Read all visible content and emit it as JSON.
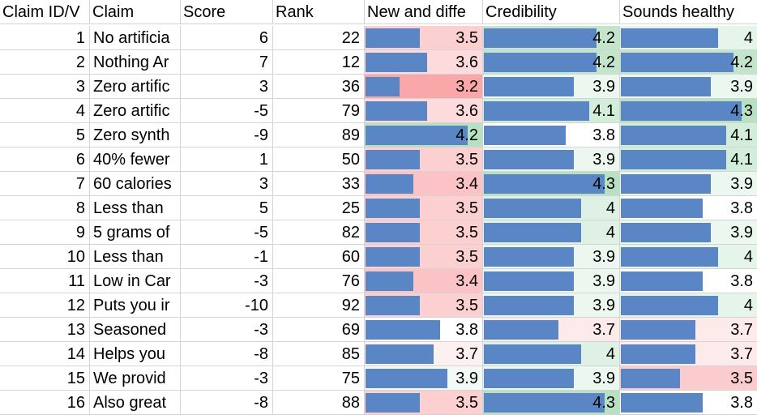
{
  "headers": [
    "Claim ID/V",
    "Claim",
    "Score",
    "Rank",
    "New and diffe",
    "Credibility",
    "Sounds healthy"
  ],
  "metric_columns": [
    {
      "name": "new_and_different",
      "min": 3.0,
      "max": 4.2
    },
    {
      "name": "credibility",
      "min": 3.0,
      "max": 4.3
    },
    {
      "name": "sounds_healthy",
      "min": 3.0,
      "max": 4.3
    }
  ],
  "rows": [
    {
      "id": "1",
      "claim": "No artificia",
      "score": "6",
      "rank": "22",
      "metrics": [
        {
          "value": "3.5",
          "bg": "#fccfd1"
        },
        {
          "value": "4.2",
          "bg": "#c2e5cb"
        },
        {
          "value": "4",
          "bg": "#e6f5ea"
        }
      ]
    },
    {
      "id": "2",
      "claim": "Nothing Ar",
      "score": "7",
      "rank": "12",
      "metrics": [
        {
          "value": "3.6",
          "bg": "#fddbdc"
        },
        {
          "value": "4.2",
          "bg": "#c2e5cb"
        },
        {
          "value": "4.2",
          "bg": "#c2e5cb"
        }
      ]
    },
    {
      "id": "3",
      "claim": "Zero artific",
      "score": "3",
      "rank": "36",
      "metrics": [
        {
          "value": "3.2",
          "bg": "#f9a7a9"
        },
        {
          "value": "3.9",
          "bg": "#ecf7ef"
        },
        {
          "value": "3.9",
          "bg": "#ecf7ef"
        }
      ]
    },
    {
      "id": "4",
      "claim": "Zero artific",
      "score": "-5",
      "rank": "79",
      "metrics": [
        {
          "value": "3.6",
          "bg": "#fddbdc"
        },
        {
          "value": "4.1",
          "bg": "#d2edd9"
        },
        {
          "value": "4.3",
          "bg": "#b8e1c3"
        }
      ]
    },
    {
      "id": "5",
      "claim": "Zero synth",
      "score": "-9",
      "rank": "89",
      "metrics": [
        {
          "value": "4.2",
          "bg": "#b8e1c3"
        },
        {
          "value": "3.8",
          "bg": "#ffffff"
        },
        {
          "value": "4.1",
          "bg": "#d2edd9"
        }
      ]
    },
    {
      "id": "6",
      "claim": "40% fewer",
      "score": "1",
      "rank": "50",
      "metrics": [
        {
          "value": "3.5",
          "bg": "#fccfd1"
        },
        {
          "value": "3.9",
          "bg": "#ecf7ef"
        },
        {
          "value": "4.1",
          "bg": "#d2edd9"
        }
      ]
    },
    {
      "id": "7",
      "claim": "60 calories",
      "score": "3",
      "rank": "33",
      "metrics": [
        {
          "value": "3.4",
          "bg": "#fbc3c5"
        },
        {
          "value": "4.3",
          "bg": "#b8e1c3"
        },
        {
          "value": "3.9",
          "bg": "#ecf7ef"
        }
      ]
    },
    {
      "id": "8",
      "claim": "Less than",
      "score": "5",
      "rank": "25",
      "metrics": [
        {
          "value": "3.5",
          "bg": "#fccfd1"
        },
        {
          "value": "4",
          "bg": "#dff1e4"
        },
        {
          "value": "3.8",
          "bg": "#ffffff"
        }
      ]
    },
    {
      "id": "9",
      "claim": "5 grams of",
      "score": "-5",
      "rank": "82",
      "metrics": [
        {
          "value": "3.5",
          "bg": "#fccfd1"
        },
        {
          "value": "4",
          "bg": "#dff1e4"
        },
        {
          "value": "3.9",
          "bg": "#ecf7ef"
        }
      ]
    },
    {
      "id": "10",
      "claim": "Less than",
      "score": "-1",
      "rank": "60",
      "metrics": [
        {
          "value": "3.5",
          "bg": "#fccfd1"
        },
        {
          "value": "3.9",
          "bg": "#ecf7ef"
        },
        {
          "value": "4",
          "bg": "#e6f5ea"
        }
      ]
    },
    {
      "id": "11",
      "claim": "Low in Car",
      "score": "-3",
      "rank": "76",
      "metrics": [
        {
          "value": "3.4",
          "bg": "#fbc3c5"
        },
        {
          "value": "3.9",
          "bg": "#ecf7ef"
        },
        {
          "value": "3.8",
          "bg": "#ffffff"
        }
      ]
    },
    {
      "id": "12",
      "claim": "Puts you ir",
      "score": "-10",
      "rank": "92",
      "metrics": [
        {
          "value": "3.5",
          "bg": "#fccfd1"
        },
        {
          "value": "3.9",
          "bg": "#ecf7ef"
        },
        {
          "value": "4",
          "bg": "#e6f5ea"
        }
      ]
    },
    {
      "id": "13",
      "claim": "Seasoned",
      "score": "-3",
      "rank": "69",
      "metrics": [
        {
          "value": "3.8",
          "bg": "#ffffff"
        },
        {
          "value": "3.7",
          "bg": "#fdeaeb"
        },
        {
          "value": "3.7",
          "bg": "#fdeaeb"
        }
      ]
    },
    {
      "id": "14",
      "claim": "Helps you",
      "score": "-8",
      "rank": "85",
      "metrics": [
        {
          "value": "3.7",
          "bg": "#fdf0f0"
        },
        {
          "value": "4",
          "bg": "#dff1e4"
        },
        {
          "value": "3.7",
          "bg": "#fdeaeb"
        }
      ]
    },
    {
      "id": "15",
      "claim": "We provid",
      "score": "-3",
      "rank": "75",
      "metrics": [
        {
          "value": "3.9",
          "bg": "#f3faf5"
        },
        {
          "value": "3.9",
          "bg": "#ecf7ef"
        },
        {
          "value": "3.5",
          "bg": "#fbcccd"
        }
      ]
    },
    {
      "id": "16",
      "claim": "Also great",
      "score": "-8",
      "rank": "88",
      "metrics": [
        {
          "value": "3.5",
          "bg": "#fccfd1"
        },
        {
          "value": "4.3",
          "bg": "#b8e1c3"
        },
        {
          "value": "3.8",
          "bg": "#ffffff"
        }
      ]
    }
  ]
}
